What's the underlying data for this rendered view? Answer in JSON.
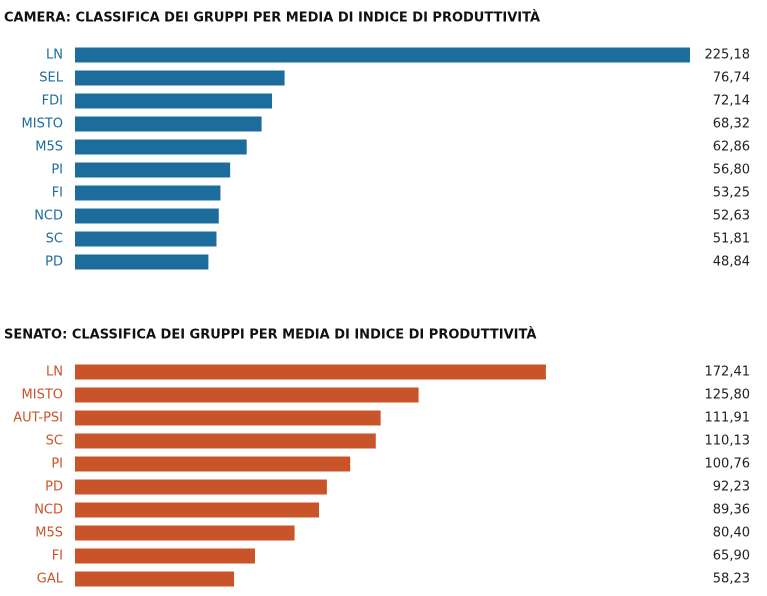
{
  "chart_data": [
    {
      "type": "barh",
      "title": "CAMERA: CLASSIFICA DEI GRUPPI PER MEDIA DI INDICE DI PRODUTTIVITÀ",
      "categories": [
        "LN",
        "SEL",
        "FDI",
        "MISTO",
        "M5S",
        "PI",
        "FI",
        "NCD",
        "SC",
        "PD"
      ],
      "values": [
        225.18,
        76.74,
        72.14,
        68.32,
        62.86,
        56.8,
        53.25,
        52.63,
        51.81,
        48.84
      ],
      "value_labels": [
        "225,18",
        "76,74",
        "72,14",
        "68,32",
        "62,86",
        "56,80",
        "53,25",
        "52,63",
        "51,81",
        "48,84"
      ],
      "color": "#1c6c9c"
    },
    {
      "type": "barh",
      "title": "SENATO: CLASSIFICA DEI GRUPPI PER MEDIA DI INDICE DI PRODUTTIVITÀ",
      "categories": [
        "LN",
        "MISTO",
        "AUT-PSI",
        "SC",
        "PI",
        "PD",
        "NCD",
        "M5S",
        "FI",
        "GAL"
      ],
      "values": [
        172.41,
        125.8,
        111.91,
        110.13,
        100.76,
        92.23,
        89.36,
        80.4,
        65.9,
        58.23
      ],
      "value_labels": [
        "172,41",
        "125,80",
        "111,91",
        "110,13",
        "100,76",
        "92,23",
        "89,36",
        "80,40",
        "65,90",
        "58,23"
      ],
      "color": "#c9542a"
    }
  ]
}
